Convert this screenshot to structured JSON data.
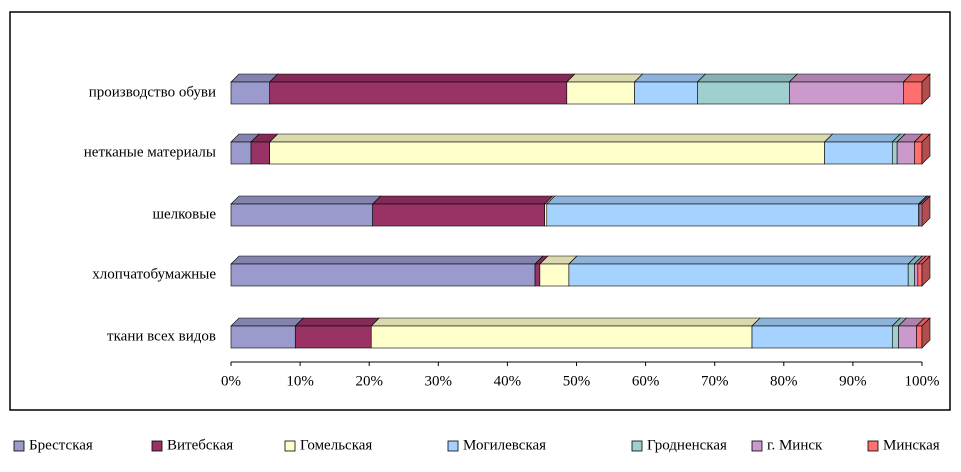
{
  "chart_data": {
    "type": "bar",
    "orientation": "horizontal",
    "stacked": "percent",
    "categories": [
      "производство обуви",
      "нетканые материалы",
      "шелковые",
      "хлопчатобумажные",
      "ткани всех видов"
    ],
    "series": [
      {
        "name": "Брестская",
        "color": "#9a9acc",
        "values": [
          5.6,
          2.9,
          20.5,
          44,
          9.3
        ]
      },
      {
        "name": "Витебская",
        "color": "#993366",
        "values": [
          43,
          2.7,
          24.9,
          0.7,
          11
        ]
      },
      {
        "name": "Гомельская",
        "color": "#ffffcc",
        "values": [
          9.8,
          80.3,
          0.3,
          4.2,
          55.1
        ]
      },
      {
        "name": "Могилевская",
        "color": "#a6d2ff",
        "values": [
          9.1,
          9.8,
          53.8,
          49.1,
          20.3
        ]
      },
      {
        "name": "Гродненская",
        "color": "#9fcfcf",
        "values": [
          13.3,
          0.7,
          0.2,
          0.9,
          0.9
        ]
      },
      {
        "name": "г. Минск",
        "color": "#cc99cc",
        "values": [
          16.5,
          2.5,
          0.3,
          0.5,
          2.6
        ]
      },
      {
        "name": "Минская",
        "color": "#ff6f6f",
        "values": [
          2.7,
          1.1,
          0,
          0.6,
          0.8
        ]
      }
    ],
    "xlim": [
      0,
      100
    ],
    "xticks": [
      {
        "value": 0,
        "label": "0%"
      },
      {
        "value": 10,
        "label": "10%"
      },
      {
        "value": 20,
        "label": "20%"
      },
      {
        "value": 30,
        "label": "30%"
      },
      {
        "value": 40,
        "label": "40%"
      },
      {
        "value": 50,
        "label": "50%"
      },
      {
        "value": 60,
        "label": "60%"
      },
      {
        "value": 70,
        "label": "70%"
      },
      {
        "value": 80,
        "label": "80%"
      },
      {
        "value": 90,
        "label": "90%"
      },
      {
        "value": 100,
        "label": "100%"
      }
    ],
    "legend": "bottom"
  }
}
